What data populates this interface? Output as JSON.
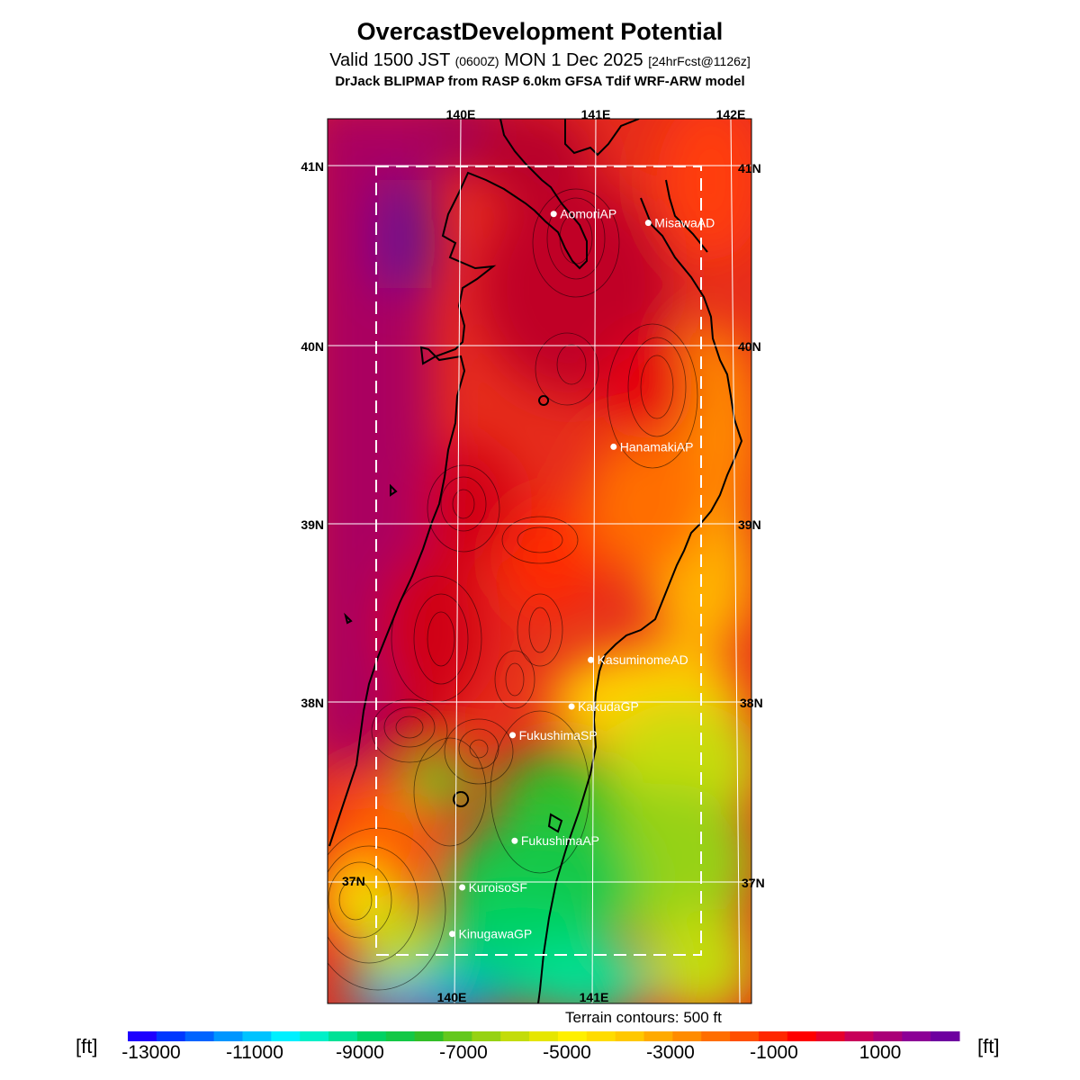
{
  "header": {
    "title": "OvercastDevelopment Potential",
    "valid_prefix": "Valid 1500 JST",
    "zulu": "(0600Z)",
    "valid_date": "MON 1 Dec 2025",
    "forecast": "[24hrFcst@1126z]",
    "model": "DrJack BLIPMAP from RASP 6.0km GFSA Tdif WRF-ARW model"
  },
  "map": {
    "lon_labels_top": [
      "140E",
      "141E",
      "142E"
    ],
    "lon_labels_bottom": [
      "140E",
      "141E"
    ],
    "lat_labels_left": [
      "41N",
      "40N",
      "39N",
      "38N",
      "37N"
    ],
    "lat_labels_right": [
      "41N",
      "40N",
      "39N",
      "38N",
      "37N"
    ],
    "stations": [
      {
        "name": "AomoriAP",
        "lat": 40.73,
        "lon": 140.69
      },
      {
        "name": "MisawaAD",
        "lat": 40.68,
        "lon": 141.39
      },
      {
        "name": "HanamakiAP",
        "lat": 39.43,
        "lon": 141.14
      },
      {
        "name": "KasuminomeAD",
        "lat": 38.24,
        "lon": 140.98
      },
      {
        "name": "KakudaGP",
        "lat": 37.98,
        "lon": 140.84
      },
      {
        "name": "FukushimaSP",
        "lat": 37.82,
        "lon": 140.41
      },
      {
        "name": "FukushimaAP",
        "lat": 37.23,
        "lon": 140.43
      },
      {
        "name": "KuroisoSF",
        "lat": 36.97,
        "lon": 140.05
      },
      {
        "name": "KinugawaGP",
        "lat": 36.71,
        "lon": 139.98
      }
    ]
  },
  "legend": {
    "terrain_note": "Terrain contours: 500 ft",
    "unit": "[ft]",
    "tick_labels": [
      "-13000",
      "-11000",
      "-9000",
      "-7000",
      "-5000",
      "-3000",
      "-1000",
      "1000"
    ],
    "colors": [
      "#1e00ff",
      "#0038ff",
      "#0064ff",
      "#0096ff",
      "#00c3ff",
      "#00f0ff",
      "#00f0c8",
      "#00e196",
      "#00d264",
      "#14c846",
      "#32be28",
      "#64c81e",
      "#96d214",
      "#c3dc0a",
      "#e6e600",
      "#fff000",
      "#ffdc00",
      "#ffc800",
      "#ffaa00",
      "#ff8c00",
      "#ff6e00",
      "#ff5000",
      "#ff2800",
      "#ff0000",
      "#e6002d",
      "#c8005a",
      "#aa0078",
      "#8c0096",
      "#6e00a0"
    ]
  }
}
